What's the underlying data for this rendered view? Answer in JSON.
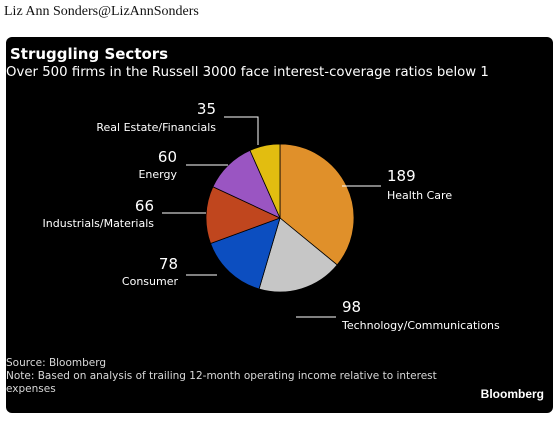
{
  "tweet": {
    "author": "Liz Ann Sonders@LizAnnSonders"
  },
  "chart_data": {
    "type": "pie",
    "title": "Struggling Sectors",
    "subtitle": "Over 500 firms in the Russell 3000 face interest-coverage ratios below 1",
    "slices": [
      {
        "label": "Health Care",
        "value": 189,
        "color": "#e0902a"
      },
      {
        "label": "Technology/Communications",
        "value": 98,
        "color": "#c6c6c6"
      },
      {
        "label": "Consumer",
        "value": 78,
        "color": "#0c4ec0"
      },
      {
        "label": "Industrials/Materials",
        "value": 66,
        "color": "#c0461e"
      },
      {
        "label": "Energy",
        "value": 60,
        "color": "#9a55c2"
      },
      {
        "label": "Real Estate/Financials",
        "value": 35,
        "color": "#e2bd10"
      }
    ],
    "start_at": "top",
    "direction": "clockwise"
  },
  "footer": {
    "source": "Source: Bloomberg",
    "note_line1": "Note: Based on analysis of trailing 12-month operating income relative to interest",
    "note_line2": "expenses"
  },
  "brand": "Bloomberg"
}
